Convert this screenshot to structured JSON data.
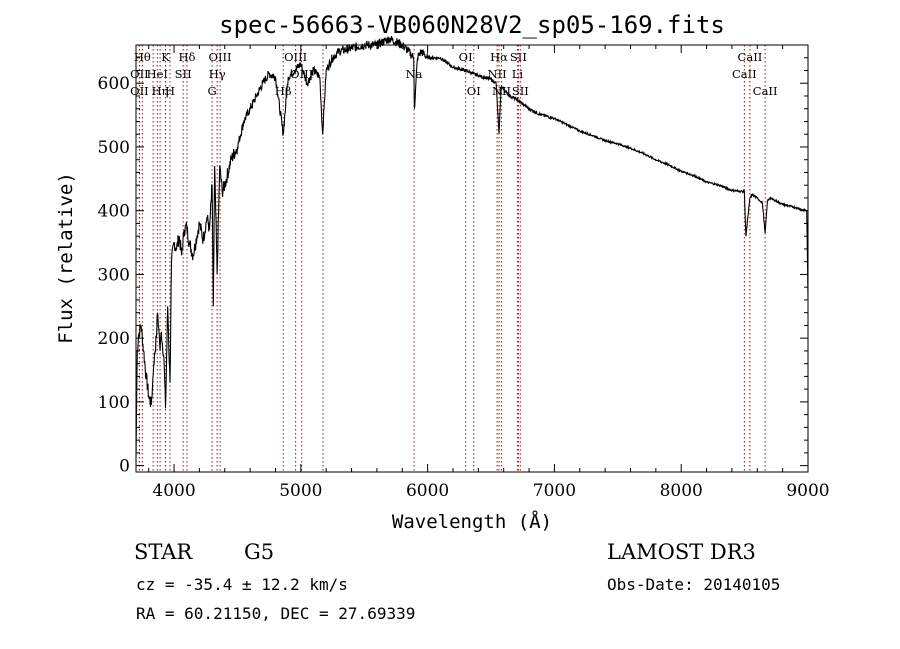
{
  "chart_data": {
    "type": "line",
    "title": "spec-56663-VB060N28V2_sp05-169.fits",
    "xlabel": "Wavelength (Å)",
    "ylabel": "Flux (relative)",
    "xlim": [
      3700,
      9000
    ],
    "ylim": [
      -10,
      660
    ],
    "x_ticks": [
      4000,
      5000,
      6000,
      7000,
      8000,
      9000
    ],
    "y_ticks": [
      0,
      100,
      200,
      300,
      400,
      500,
      600
    ],
    "x_tick_labels": [
      "4000",
      "5000",
      "6000",
      "7000",
      "8000",
      "9000"
    ],
    "y_tick_labels": [
      "0",
      "100",
      "200",
      "300",
      "400",
      "500",
      "600"
    ],
    "spectrum": {
      "name": "flux",
      "x": [
        3700,
        3710,
        3720,
        3740,
        3760,
        3780,
        3800,
        3820,
        3830,
        3840,
        3860,
        3870,
        3880,
        3890,
        3900,
        3920,
        3933,
        3950,
        3968,
        3980,
        4000,
        4020,
        4040,
        4060,
        4080,
        4100,
        4120,
        4150,
        4180,
        4200,
        4230,
        4260,
        4280,
        4300,
        4310,
        4320,
        4340,
        4360,
        4380,
        4400,
        4450,
        4500,
        4550,
        4600,
        4650,
        4700,
        4750,
        4800,
        4861,
        4900,
        4950,
        5000,
        5050,
        5100,
        5150,
        5172,
        5183,
        5200,
        5250,
        5300,
        5400,
        5500,
        5600,
        5700,
        5800,
        5850,
        5890,
        5896,
        5920,
        5950,
        6000,
        6100,
        6200,
        6300,
        6400,
        6500,
        6540,
        6563,
        6580,
        6600,
        6650,
        6700,
        6800,
        6900,
        7000,
        7100,
        7200,
        7300,
        7400,
        7500,
        7600,
        7700,
        7800,
        7900,
        8000,
        8100,
        8200,
        8300,
        8400,
        8498,
        8510,
        8542,
        8560,
        8600,
        8640,
        8662,
        8680,
        8700,
        8800,
        8900,
        8950,
        8990,
        9000
      ],
      "y": [
        10,
        180,
        205,
        220,
        180,
        140,
        110,
        95,
        125,
        160,
        200,
        240,
        215,
        180,
        210,
        170,
        90,
        250,
        130,
        320,
        350,
        340,
        360,
        330,
        370,
        375,
        350,
        330,
        360,
        380,
        355,
        390,
        370,
        440,
        250,
        470,
        300,
        470,
        430,
        440,
        480,
        500,
        540,
        560,
        580,
        600,
        615,
        610,
        520,
        610,
        620,
        630,
        600,
        620,
        610,
        520,
        560,
        620,
        640,
        650,
        655,
        660,
        660,
        670,
        660,
        650,
        640,
        560,
        640,
        650,
        640,
        640,
        625,
        620,
        612,
        606,
        600,
        520,
        595,
        590,
        580,
        575,
        560,
        550,
        545,
        535,
        525,
        518,
        510,
        505,
        498,
        490,
        480,
        472,
        462,
        455,
        445,
        440,
        432,
        430,
        360,
        420,
        425,
        420,
        412,
        365,
        415,
        420,
        410,
        405,
        402,
        400,
        260
      ]
    },
    "lines": [
      {
        "x": 3750,
        "label": "Hθ",
        "row": 0
      },
      {
        "x": 3727,
        "label": "OII",
        "row": 1
      },
      {
        "x": 3727,
        "label": "OII",
        "row": 2
      },
      {
        "x": 3835,
        "label": "",
        "row": 0
      },
      {
        "x": 3868,
        "label": "HeI",
        "row": 1
      },
      {
        "x": 3890,
        "label": "Hη",
        "row": 2
      },
      {
        "x": 3933,
        "label": "K",
        "row": 0
      },
      {
        "x": 3968,
        "label": "H",
        "row": 2
      },
      {
        "x": 4072,
        "label": "SII",
        "row": 1
      },
      {
        "x": 4102,
        "label": "Hδ",
        "row": 0
      },
      {
        "x": 4300,
        "label": "G",
        "row": 2
      },
      {
        "x": 4340,
        "label": "Hγ",
        "row": 1
      },
      {
        "x": 4363,
        "label": "OIII",
        "row": 0
      },
      {
        "x": 4861,
        "label": "Hβ",
        "row": 2
      },
      {
        "x": 4959,
        "label": "OIII",
        "row": 0
      },
      {
        "x": 5007,
        "label": "OIII",
        "row": 1
      },
      {
        "x": 5175,
        "label": "",
        "row": 0
      },
      {
        "x": 5893,
        "label": "Na",
        "row": 1
      },
      {
        "x": 6300,
        "label": "OI",
        "row": 0
      },
      {
        "x": 6364,
        "label": "OI",
        "row": 2
      },
      {
        "x": 6548,
        "label": "NII",
        "row": 1
      },
      {
        "x": 6563,
        "label": "Hα",
        "row": 0
      },
      {
        "x": 6583,
        "label": "NII",
        "row": 2
      },
      {
        "x": 6708,
        "label": "Li",
        "row": 1
      },
      {
        "x": 6716,
        "label": "SII",
        "row": 0
      },
      {
        "x": 6731,
        "label": "SII",
        "row": 2
      },
      {
        "x": 8498,
        "label": "CaII",
        "row": 1
      },
      {
        "x": 8542,
        "label": "CaII",
        "row": 0
      },
      {
        "x": 8662,
        "label": "CaII",
        "row": 2
      }
    ],
    "colors": {
      "spectrum": "#000000",
      "lines": "#cc0000"
    }
  },
  "info": {
    "object_type": "STAR",
    "subclass": "G5",
    "survey": "LAMOST DR3",
    "cz": "cz = -35.4 ± 12.2 km/s",
    "obs_date": "Obs-Date: 20140105",
    "coords": "RA =  60.21150, DEC =  27.69339"
  }
}
